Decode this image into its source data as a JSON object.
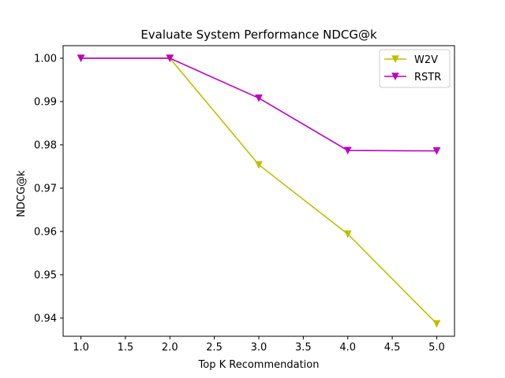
{
  "chart_data": {
    "type": "line",
    "title": "Evaluate System Performance NDCG@k",
    "xlabel": "Top K Recommendation",
    "ylabel": "NDCG@k",
    "x": [
      1.0,
      2.0,
      3.0,
      4.0,
      5.0
    ],
    "xlim": [
      0.8,
      5.2
    ],
    "ylim": [
      0.9358,
      1.0029
    ],
    "xticks": [
      "1.0",
      "1.5",
      "2.0",
      "2.5",
      "3.0",
      "3.5",
      "4.0",
      "4.5",
      "5.0"
    ],
    "xtick_values": [
      1.0,
      1.5,
      2.0,
      2.5,
      3.0,
      3.5,
      4.0,
      4.5,
      5.0
    ],
    "yticks": [
      "0.94",
      "0.95",
      "0.96",
      "0.97",
      "0.98",
      "0.99",
      "1.00"
    ],
    "ytick_values": [
      0.94,
      0.95,
      0.96,
      0.97,
      0.98,
      0.99,
      1.0
    ],
    "grid": false,
    "legend_position": "top-right",
    "series": [
      {
        "name": "W2V",
        "color": "#bfbf00",
        "marker": "triangle-down",
        "values": [
          1.0,
          1.0,
          0.9754,
          0.9594,
          0.9387
        ]
      },
      {
        "name": "RSTR",
        "color": "#bf00bf",
        "marker": "triangle-down",
        "values": [
          1.0,
          1.0,
          0.9908,
          0.9787,
          0.9786
        ]
      }
    ]
  }
}
